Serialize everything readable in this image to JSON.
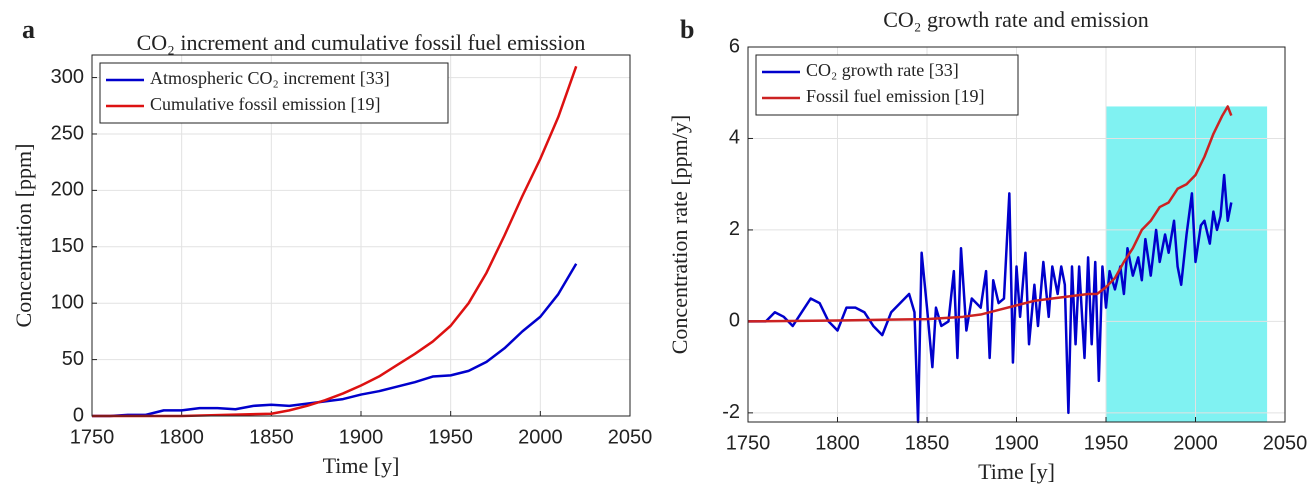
{
  "chart_data": [
    {
      "type": "line",
      "panel_label": "a",
      "title": "CO₂ increment and cumulative fossil fuel emission",
      "xlabel": "Time [y]",
      "ylabel": "Concentration [ppm]",
      "xlim": [
        1750,
        2050
      ],
      "xticks": [
        1750,
        1800,
        1850,
        1900,
        1950,
        2000,
        2050
      ],
      "ylim": [
        0,
        320
      ],
      "yticks": [
        0,
        50,
        100,
        150,
        200,
        250,
        300
      ],
      "grid": true,
      "legend": "upper-left",
      "series": [
        {
          "name": "Atmospheric CO₂ increment [33]",
          "color": "#0000cc",
          "x": [
            1750,
            1760,
            1770,
            1780,
            1790,
            1800,
            1810,
            1820,
            1830,
            1840,
            1850,
            1860,
            1870,
            1880,
            1890,
            1900,
            1910,
            1920,
            1930,
            1940,
            1950,
            1960,
            1970,
            1980,
            1990,
            2000,
            2010,
            2020
          ],
          "values": [
            0,
            0,
            1,
            1,
            5,
            5,
            7,
            7,
            6,
            9,
            10,
            9,
            11,
            13,
            15,
            19,
            22,
            26,
            30,
            35,
            36,
            40,
            48,
            60,
            75,
            88,
            108,
            135
          ]
        },
        {
          "name": "Cumulative fossil emission [19]",
          "color": "#dd1111",
          "x": [
            1750,
            1800,
            1850,
            1860,
            1870,
            1880,
            1890,
            1900,
            1910,
            1920,
            1930,
            1940,
            1950,
            1960,
            1970,
            1980,
            1990,
            2000,
            2010,
            2020
          ],
          "values": [
            0,
            0,
            2,
            5,
            9,
            14,
            20,
            27,
            35,
            45,
            55,
            66,
            80,
            100,
            127,
            160,
            195,
            228,
            265,
            310
          ]
        }
      ]
    },
    {
      "type": "line",
      "panel_label": "b",
      "title": "CO₂ growth rate and emission",
      "xlabel": "Time [y]",
      "ylabel": "Concentration rate [ppm/y]",
      "xlim": [
        1750,
        2050
      ],
      "xticks": [
        1750,
        1800,
        1850,
        1900,
        1950,
        2000,
        2050
      ],
      "ylim": [
        -2.2,
        6
      ],
      "yticks": [
        -2,
        0,
        2,
        4,
        6
      ],
      "grid": true,
      "legend": "upper-left",
      "highlight": {
        "x": [
          1950,
          2040
        ],
        "y": [
          -2.2,
          4.7
        ],
        "color": "#80f2f2"
      },
      "series": [
        {
          "name": "CO₂ growth rate [33]",
          "color": "#0000cc",
          "x": [
            1750,
            1755,
            1760,
            1765,
            1770,
            1775,
            1780,
            1785,
            1790,
            1795,
            1800,
            1805,
            1810,
            1815,
            1820,
            1825,
            1830,
            1835,
            1840,
            1843,
            1845,
            1847,
            1850,
            1853,
            1855,
            1858,
            1862,
            1865,
            1867,
            1869,
            1872,
            1875,
            1880,
            1883,
            1885,
            1887,
            1890,
            1893,
            1896,
            1898,
            1900,
            1902,
            1905,
            1907,
            1910,
            1912,
            1915,
            1918,
            1920,
            1923,
            1925,
            1927,
            1929,
            1931,
            1933,
            1935,
            1938,
            1940,
            1942,
            1944,
            1946,
            1948,
            1950,
            1952,
            1955,
            1958,
            1960,
            1962,
            1965,
            1968,
            1970,
            1972,
            1975,
            1978,
            1980,
            1983,
            1985,
            1988,
            1990,
            1992,
            1995,
            1998,
            2000,
            2003,
            2005,
            2008,
            2010,
            2012,
            2014,
            2016,
            2018,
            2020
          ],
          "values": [
            0,
            0,
            0,
            0.2,
            0.1,
            -0.1,
            0.2,
            0.5,
            0.4,
            0,
            -0.2,
            0.3,
            0.3,
            0.2,
            -0.1,
            -0.3,
            0.2,
            0.4,
            0.6,
            0.2,
            -2.2,
            1.5,
            0.3,
            -1,
            0.3,
            -0.1,
            0,
            1.1,
            -0.8,
            1.6,
            -0.2,
            0.5,
            0.3,
            1.1,
            -0.8,
            0.9,
            0.4,
            0.5,
            2.8,
            -0.9,
            1.2,
            0.1,
            1.5,
            -0.5,
            0.8,
            -0.1,
            1.3,
            0.1,
            1.2,
            0.6,
            1.2,
            0.8,
            -2.0,
            1.2,
            -0.5,
            1.2,
            -0.8,
            1.4,
            -0.5,
            1.3,
            -1.3,
            1.2,
            0.3,
            1.1,
            0.7,
            1.2,
            0.6,
            1.6,
            1.0,
            1.4,
            0.9,
            1.8,
            1.0,
            2.0,
            1.3,
            1.9,
            1.5,
            2.2,
            1.2,
            0.8,
            1.9,
            2.8,
            1.3,
            2.1,
            2.2,
            1.7,
            2.4,
            2.0,
            2.3,
            3.2,
            2.2,
            2.6
          ]
        },
        {
          "name": "Fossil fuel emission [19]",
          "color": "#cc2222",
          "x": [
            1750,
            1800,
            1850,
            1870,
            1880,
            1890,
            1900,
            1910,
            1920,
            1930,
            1940,
            1945,
            1950,
            1955,
            1960,
            1965,
            1970,
            1975,
            1980,
            1985,
            1990,
            1995,
            2000,
            2005,
            2010,
            2015,
            2018,
            2020
          ],
          "values": [
            0,
            0.02,
            0.05,
            0.1,
            0.15,
            0.25,
            0.35,
            0.45,
            0.5,
            0.55,
            0.6,
            0.6,
            0.75,
            0.95,
            1.3,
            1.6,
            2.0,
            2.2,
            2.5,
            2.6,
            2.9,
            3.0,
            3.2,
            3.6,
            4.1,
            4.5,
            4.7,
            4.5
          ]
        }
      ]
    }
  ]
}
